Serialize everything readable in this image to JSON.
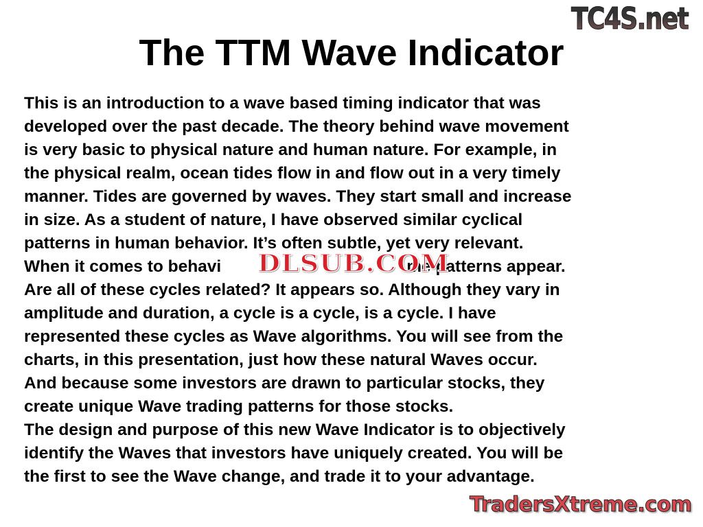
{
  "slide": {
    "title": "The TTM Wave Indicator",
    "lines": [
      "This is an introduction to a wave based timing indicator that was",
      "developed over the past decade. The theory behind wave movement",
      "is very basic to physical nature and human nature. For example, in",
      "the physical realm, ocean tides flow in and flow out in a very timely",
      "manner. Tides are governed by waves. They start small and increase",
      "in size. As a student of nature, I have observed similar cyclical",
      "patterns in human behavior. It’s often subtle, yet very relevant.",
      "",
      "Are all of these cycles related? It appears so. Although they vary in",
      "amplitude and duration, a cycle is a cycle, is a cycle. I have",
      "represented these cycles as Wave algorithms. You will see from the",
      "charts, in this presentation, just how these natural Waves occur.",
      "And because some investors are drawn to particular stocks, they",
      "create unique Wave trading patterns for those stocks.",
      "The design and purpose of this new Wave Indicator is to objectively",
      "identify the Waves that investors have uniquely created. You will be",
      "the first to see the Wave change, and trade it to your advantage."
    ],
    "occluded_line": {
      "before": "When it comes to behavi",
      "after": "me patterns appear."
    }
  },
  "watermarks": {
    "top_right": "TC4S.net",
    "center": "DLSUB.COM",
    "bottom_right": "TradersXtreme.com"
  }
}
